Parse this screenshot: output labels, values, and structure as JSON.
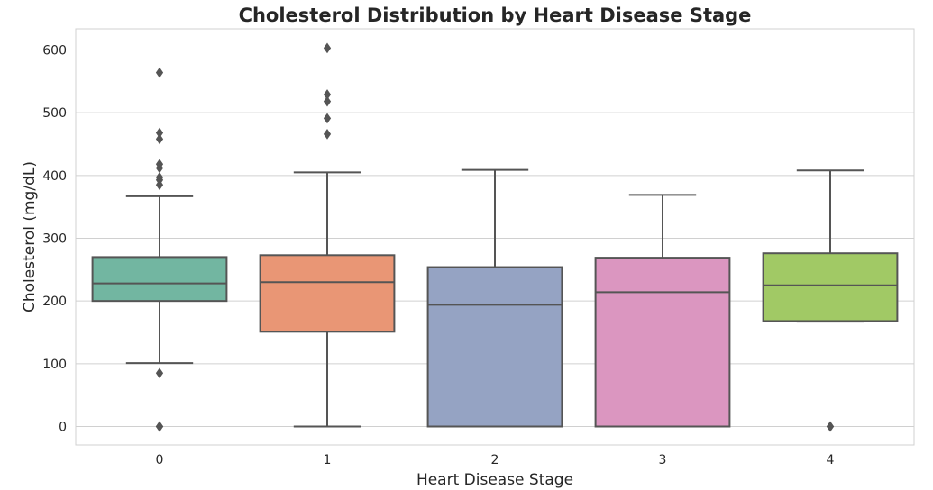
{
  "chart_data": {
    "type": "box",
    "title": "Cholesterol Distribution by Heart Disease Stage",
    "xlabel": "Heart Disease Stage",
    "ylabel": "Cholesterol (mg/dL)",
    "ylim": [
      -30,
      632
    ],
    "yticks": [
      0,
      100,
      200,
      300,
      400,
      500,
      600
    ],
    "grid": true,
    "categories": [
      "0",
      "1",
      "2",
      "3",
      "4"
    ],
    "colors": [
      "#72b6a1",
      "#e99675",
      "#95a3c3",
      "#db96c0",
      "#a1c965"
    ],
    "boxes": [
      {
        "category": "0",
        "whislo": 101,
        "q1": 200,
        "med": 228,
        "q3": 270,
        "whishi": 367,
        "fliers": [
          0,
          0,
          0,
          85,
          385,
          393,
          397,
          412,
          418,
          458,
          468,
          564
        ]
      },
      {
        "category": "1",
        "whislo": 0,
        "q1": 151,
        "med": 230,
        "q3": 273,
        "whishi": 405,
        "fliers": [
          466,
          491,
          518,
          529,
          603
        ]
      },
      {
        "category": "2",
        "whislo": 0,
        "q1": 0,
        "med": 194,
        "q3": 254,
        "whishi": 409,
        "fliers": []
      },
      {
        "category": "3",
        "whislo": 0,
        "q1": 0,
        "med": 214,
        "q3": 269,
        "whishi": 369,
        "fliers": []
      },
      {
        "category": "4",
        "whislo": 167,
        "q1": 168,
        "med": 225,
        "q3": 276,
        "whishi": 408,
        "fliers": [
          0,
          0
        ]
      }
    ]
  }
}
